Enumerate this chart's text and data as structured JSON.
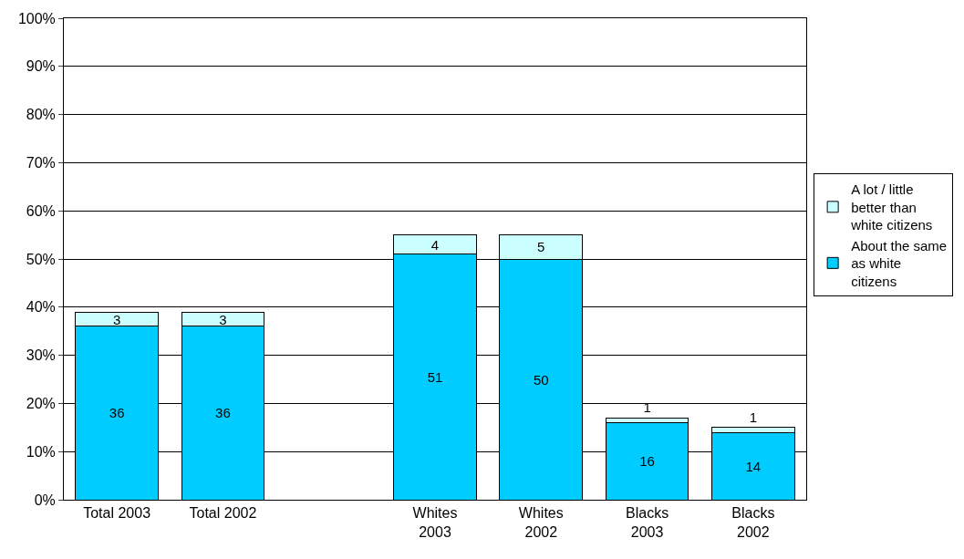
{
  "chart_data": {
    "type": "bar",
    "stacked": true,
    "categories": [
      "Total 2003",
      "Total 2002",
      null,
      "Whites\n2003",
      "Whites\n2002",
      "Blacks\n2003",
      "Blacks\n2002"
    ],
    "series": [
      {
        "name": "About the same\nas white\ncitizens",
        "color": "#00ccff",
        "values": [
          36,
          36,
          null,
          51,
          50,
          16,
          14
        ]
      },
      {
        "name": "A lot / little\nbetter than\nwhite citizens",
        "color": "#ccffff",
        "values": [
          3,
          3,
          null,
          4,
          5,
          1,
          1
        ]
      }
    ],
    "ylim": [
      0,
      100
    ],
    "yticks": [
      {
        "value": 0,
        "label": "0%"
      },
      {
        "value": 10,
        "label": "10%"
      },
      {
        "value": 20,
        "label": "20%"
      },
      {
        "value": 30,
        "label": "30%"
      },
      {
        "value": 40,
        "label": "40%"
      },
      {
        "value": 50,
        "label": "50%"
      },
      {
        "value": 60,
        "label": "60%"
      },
      {
        "value": 70,
        "label": "70%"
      },
      {
        "value": 80,
        "label": "80%"
      },
      {
        "value": 90,
        "label": "90%"
      },
      {
        "value": 100,
        "label": "100%"
      }
    ],
    "grid": "y",
    "legend": "right",
    "data_labels": true
  }
}
